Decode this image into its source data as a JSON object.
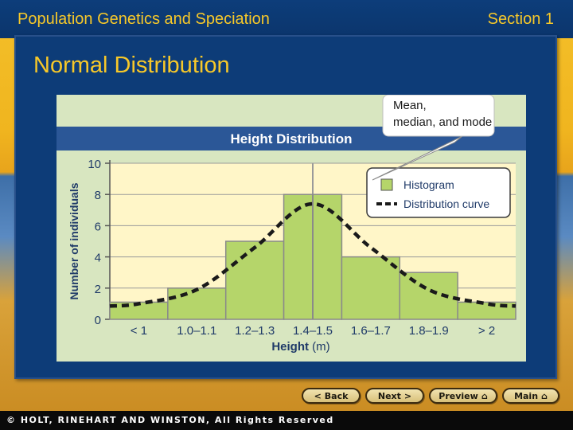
{
  "header": {
    "title": "Population Genetics and Speciation",
    "section": "Section 1"
  },
  "slide": {
    "title": "Normal Distribution"
  },
  "chart_data": {
    "type": "bar",
    "title": "Height Distribution",
    "xlabel": "Height",
    "xunit": "(m)",
    "ylabel": "Number of individuals",
    "categories": [
      "< 1",
      "1.0–1.1",
      "1.2–1.3",
      "1.4–1.5",
      "1.6–1.7",
      "1.8–1.9",
      "> 2"
    ],
    "series": [
      {
        "name": "Histogram",
        "values": [
          1.1,
          2,
          5,
          8,
          4,
          3,
          1.1
        ],
        "color": "#b5d56a"
      },
      {
        "name": "Distribution curve",
        "values": [
          1,
          1.9,
          4.6,
          7.4,
          4.6,
          1.9,
          1
        ],
        "color": "#1a1a1a"
      }
    ],
    "ylim": [
      0,
      10
    ],
    "yticks": [
      "0",
      "2",
      "4",
      "6",
      "8",
      "10"
    ],
    "grid": true,
    "legend": "top-right",
    "annotation": "Mean, median, and mode",
    "colors": {
      "title_band": "#2b5797",
      "plot_bg": "#fff6c8",
      "outer_bg": "#d8e6c0",
      "bar_fill": "#b5d56a",
      "bar_edge": "#8a8a8a"
    }
  },
  "nav": {
    "back": "Back",
    "next": "Next",
    "preview": "Preview",
    "main": "Main"
  },
  "footer": {
    "copyright": "© HOLT, RINEHART AND WINSTON, All Rights Reserved"
  }
}
